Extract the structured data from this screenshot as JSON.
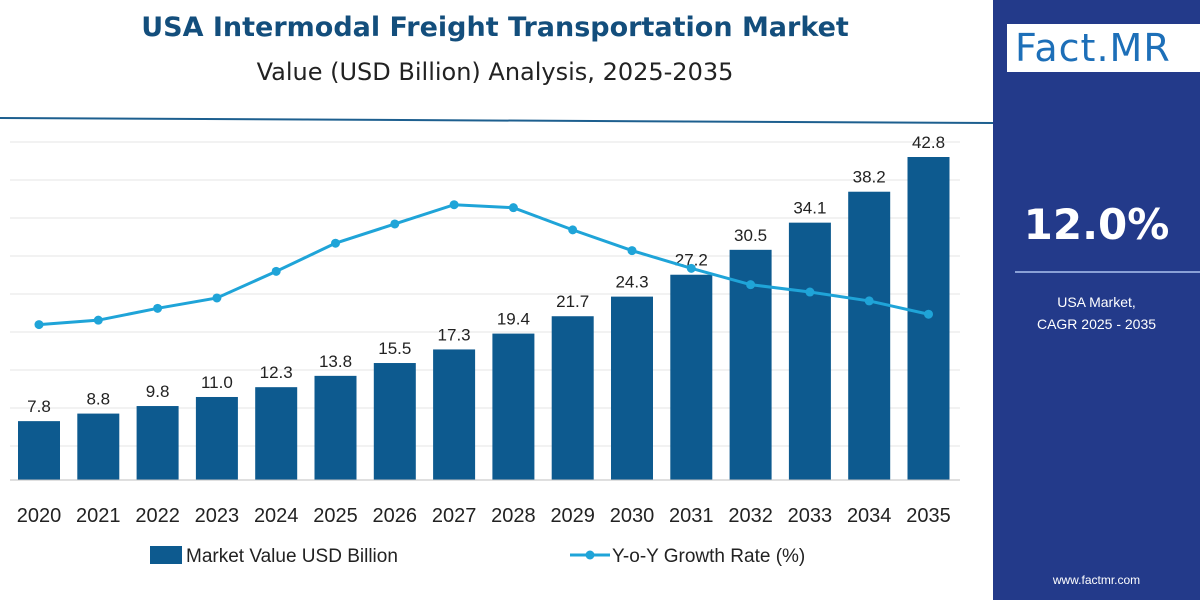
{
  "header": {
    "title": "USA Intermodal Freight Transportation Market",
    "subtitle": "Value (USD Billion) Analysis, 2025-2035"
  },
  "sidebar": {
    "logo": "Fact.MR",
    "cagr_value": "12.0%",
    "cagr_label_line1": "USA Market,",
    "cagr_label_line2": "CAGR 2025 - 2035",
    "website": "www.factmr.com"
  },
  "colors": {
    "bar": "#0d5a8f",
    "line": "#1fa4d8",
    "title": "#134e7c",
    "panel": "#233a8a"
  },
  "chart_data": {
    "type": "bar",
    "title": "USA Intermodal Freight Transportation Market",
    "categories": [
      "2020",
      "2021",
      "2022",
      "2023",
      "2024",
      "2025",
      "2026",
      "2027",
      "2028",
      "2029",
      "2030",
      "2031",
      "2032",
      "2033",
      "2034",
      "2035"
    ],
    "series": [
      {
        "name": "Market Value USD Billion",
        "type": "bar",
        "values": [
          7.8,
          8.8,
          9.8,
          11.0,
          12.3,
          13.8,
          15.5,
          17.3,
          19.4,
          21.7,
          24.3,
          27.2,
          30.5,
          34.1,
          38.2,
          42.8
        ],
        "labels": [
          "7.8",
          "8.8",
          "9.8",
          "11.0",
          "12.3",
          "13.8",
          "15.5",
          "17.3",
          "19.4",
          "21.7",
          "24.3",
          "27.2",
          "30.5",
          "34.1",
          "38.2",
          "42.8"
        ]
      },
      {
        "name": "Y-o-Y Growth Rate (%)",
        "type": "line",
        "values": [
          10.5,
          10.8,
          11.6,
          12.3,
          14.1,
          16.0,
          17.3,
          18.6,
          18.4,
          16.9,
          15.5,
          14.3,
          13.2,
          12.7,
          12.1,
          11.2
        ]
      }
    ],
    "ylim": [
      0,
      45
    ],
    "line_ylim": [
      0,
      25
    ],
    "grid": true,
    "legend": "bottom"
  }
}
